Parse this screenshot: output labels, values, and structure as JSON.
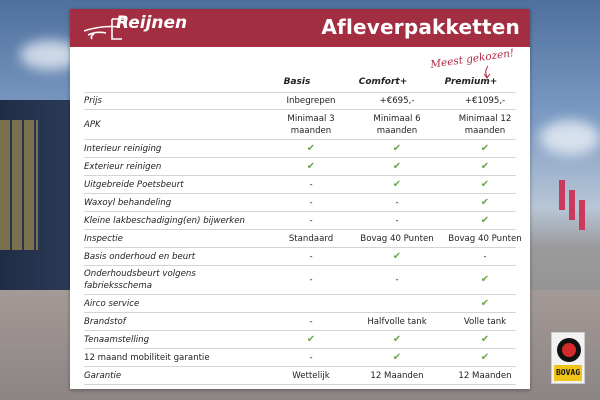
{
  "header": {
    "brand": "Reijnen",
    "title": "Afleverpakketten"
  },
  "note": "Meest gekozen!",
  "columns": [
    "Basis",
    "Comfort+",
    "Premium+"
  ],
  "rows": [
    {
      "label": "Prijs",
      "values": [
        "Inbegrepen",
        "+€695,-",
        "+€1095,-"
      ]
    },
    {
      "label": "APK",
      "values": [
        "Minimaal 3 maanden",
        "Minimaal 6 maanden",
        "Minimaal 12 maanden"
      ]
    },
    {
      "label": "Interieur reiniging",
      "values": [
        "✔",
        "✔",
        "✔"
      ]
    },
    {
      "label": "Exterieur reinigen",
      "values": [
        "✔",
        "✔",
        "✔"
      ]
    },
    {
      "label": "Uitgebreide Poetsbeurt",
      "values": [
        "-",
        "✔",
        "✔"
      ]
    },
    {
      "label": "Waxoyl behandeling",
      "values": [
        "-",
        "-",
        "✔"
      ]
    },
    {
      "label": "Kleine lakbeschadiging(en) bijwerken",
      "values": [
        "-",
        "-",
        "✔"
      ]
    },
    {
      "label": "Inspectie",
      "values": [
        "Standaard",
        "Bovag 40 Punten",
        "Bovag 40 Punten"
      ]
    },
    {
      "label": "Basis onderhoud en beurt",
      "values": [
        "-",
        "✔",
        "-"
      ]
    },
    {
      "label": "Onderhoudsbeurt volgens fabrieksschema",
      "values": [
        "-",
        "-",
        "✔"
      ]
    },
    {
      "label": "Airco service",
      "values": [
        "",
        "",
        "✔"
      ]
    },
    {
      "label": "Brandstof",
      "values": [
        "-",
        "Halfvolle tank",
        "Volle tank"
      ]
    },
    {
      "label": "Tenaamstelling",
      "values": [
        "✔",
        "✔",
        "✔"
      ]
    },
    {
      "label": "12 maand mobiliteit garantie",
      "values": [
        "-",
        "✔",
        "✔"
      ]
    },
    {
      "label": "Garantie",
      "values": [
        "Wettelijk",
        "12 Maanden",
        "12 Maanden"
      ]
    }
  ],
  "badge": {
    "text": "BOVAG"
  },
  "colors": {
    "brand": "#a32e41",
    "check": "#6aa84f"
  }
}
